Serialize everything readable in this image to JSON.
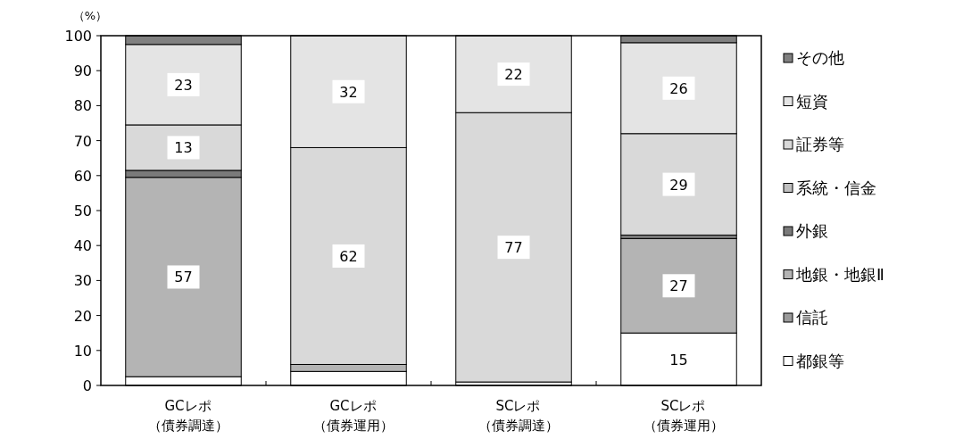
{
  "chart_data": {
    "type": "bar",
    "stacked": true,
    "ylabel": "（%）",
    "categories": [
      "GCレポ（債券調達）",
      "GCレポ（債券運用）",
      "SCレポ（債券調達）",
      "SCレポ（債券運用）"
    ],
    "ylim": [
      0,
      100
    ],
    "yticks": [
      0,
      10,
      20,
      30,
      40,
      50,
      60,
      70,
      80,
      90,
      100
    ],
    "legend": "right",
    "grid": false,
    "series": [
      {
        "name": "都銀等",
        "color": "#ffffff",
        "values": [
          2.5,
          4,
          1,
          15
        ],
        "value_labels": [
          null,
          null,
          null,
          "15"
        ]
      },
      {
        "name": "信託",
        "color": "#9a9a9a",
        "values": [
          0,
          0,
          0,
          0
        ],
        "value_labels": [
          null,
          null,
          null,
          null
        ]
      },
      {
        "name": "地銀・地銀Ⅱ",
        "color": "#b4b4b4",
        "values": [
          57,
          2,
          0,
          27
        ],
        "value_labels": [
          "57",
          null,
          null,
          "27"
        ]
      },
      {
        "name": "外銀",
        "color": "#7a7a7a",
        "values": [
          2,
          0,
          0,
          1
        ],
        "value_labels": [
          null,
          null,
          null,
          null
        ]
      },
      {
        "name": "系統・信金",
        "color": "#c0c0c0",
        "values": [
          0,
          0,
          0,
          0
        ],
        "value_labels": [
          null,
          null,
          null,
          null
        ]
      },
      {
        "name": "証券等",
        "color": "#d9d9d9",
        "values": [
          13,
          62,
          77,
          29
        ],
        "value_labels": [
          "13",
          "62",
          "77",
          "29"
        ]
      },
      {
        "name": "短資",
        "color": "#e4e4e4",
        "values": [
          23,
          32,
          22,
          26
        ],
        "value_labels": [
          "23",
          "32",
          "22",
          "26"
        ]
      },
      {
        "name": "その他",
        "color": "#808080",
        "values": [
          2.5,
          0,
          0,
          2
        ],
        "value_labels": [
          null,
          null,
          null,
          null
        ]
      }
    ]
  }
}
